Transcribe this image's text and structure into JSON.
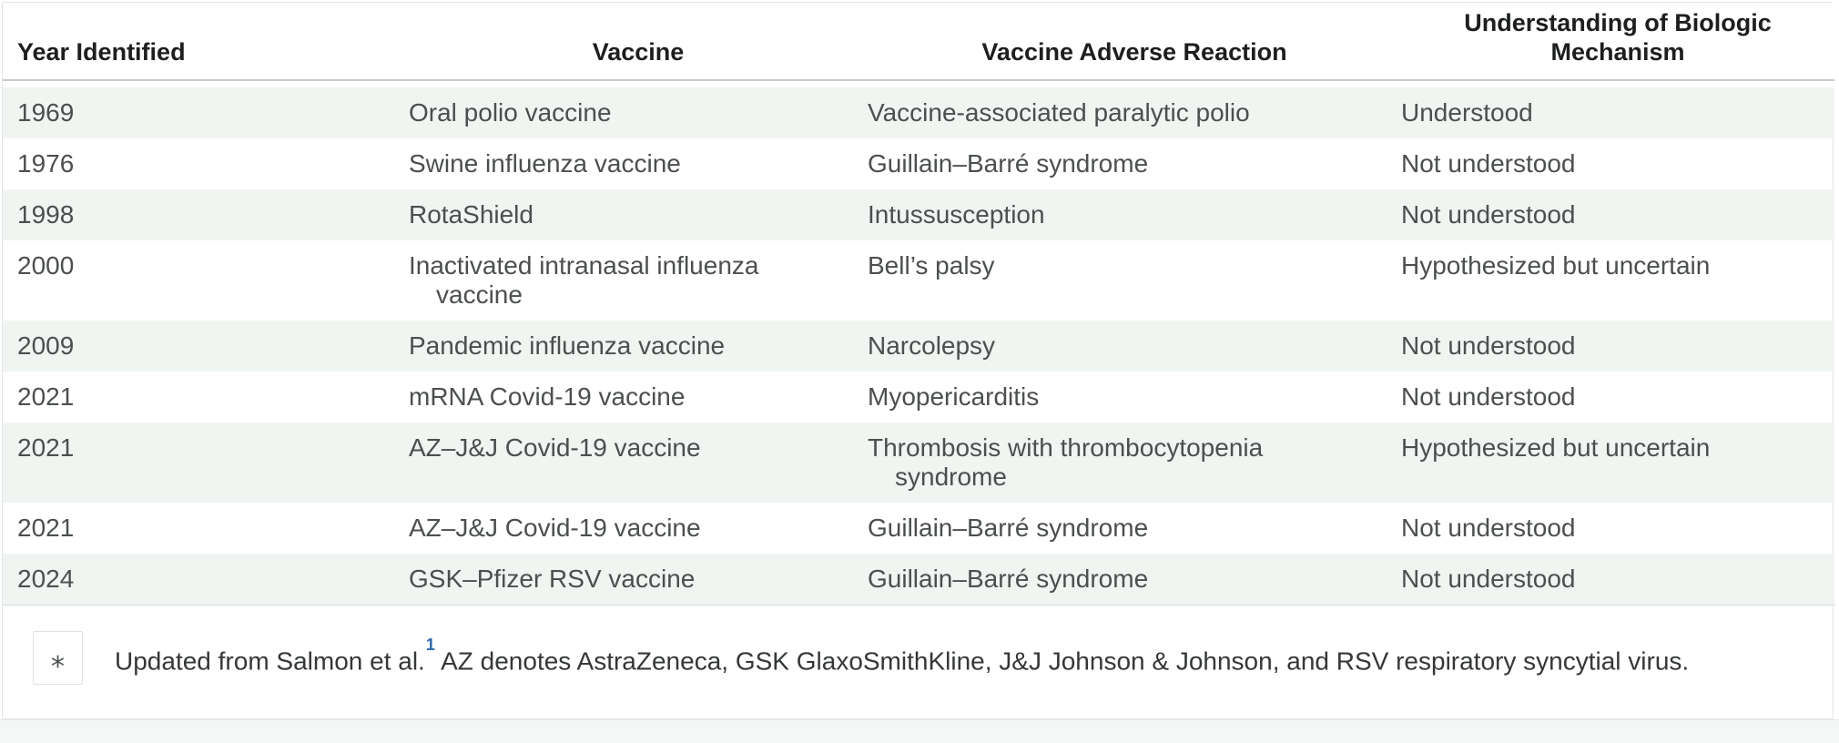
{
  "table": {
    "columns": [
      "Year Identified",
      "Vaccine",
      "Vaccine Adverse Reaction",
      "Understanding of Biologic Mechanism"
    ],
    "rows": [
      {
        "year": "1969",
        "vaccine": "Oral polio vaccine",
        "reaction": "Vaccine-associated paralytic polio",
        "mechanism": "Understood"
      },
      {
        "year": "1976",
        "vaccine": "Swine influenza vaccine",
        "reaction": "Guillain–Barré syndrome",
        "mechanism": "Not understood"
      },
      {
        "year": "1998",
        "vaccine": "RotaShield",
        "reaction": "Intussusception",
        "mechanism": "Not understood"
      },
      {
        "year": "2000",
        "vaccine": "Inactivated intranasal influenza vaccine",
        "reaction": "Bell’s palsy",
        "mechanism": "Hypothesized but uncertain"
      },
      {
        "year": "2009",
        "vaccine": "Pandemic influenza vaccine",
        "reaction": "Narcolepsy",
        "mechanism": "Not understood"
      },
      {
        "year": "2021",
        "vaccine": "mRNA Covid-19 vaccine",
        "reaction": "Myopericarditis",
        "mechanism": "Not understood"
      },
      {
        "year": "2021",
        "vaccine": "AZ–J&J Covid-19 vaccine",
        "reaction": "Thrombosis with thrombocytopenia syndrome",
        "mechanism": "Hypothesized but uncertain"
      },
      {
        "year": "2021",
        "vaccine": "AZ–J&J Covid-19 vaccine",
        "reaction": "Guillain–Barré syndrome",
        "mechanism": "Not understood"
      },
      {
        "year": "2024",
        "vaccine": "GSK–Pfizer RSV vaccine",
        "reaction": "Guillain–Barré syndrome",
        "mechanism": "Not understood"
      }
    ]
  },
  "footnote": {
    "marker": "*",
    "part1": "Updated from Salmon et al.",
    "ref": "1",
    "part2": " AZ denotes AstraZeneca, GSK GlaxoSmithKline, J&J Johnson & Johnson, and RSV respiratory syncytial virus."
  },
  "colors": {
    "shaded_row": "#f0f5f2",
    "header_text": "#1c1f1e",
    "body_text": "#4b504e",
    "reference_link_blue": "#2f67ae",
    "header_rule": "#c6cac8",
    "card_border": "#e2e5e3",
    "page_bottom_strip": "#f5f6f6"
  }
}
